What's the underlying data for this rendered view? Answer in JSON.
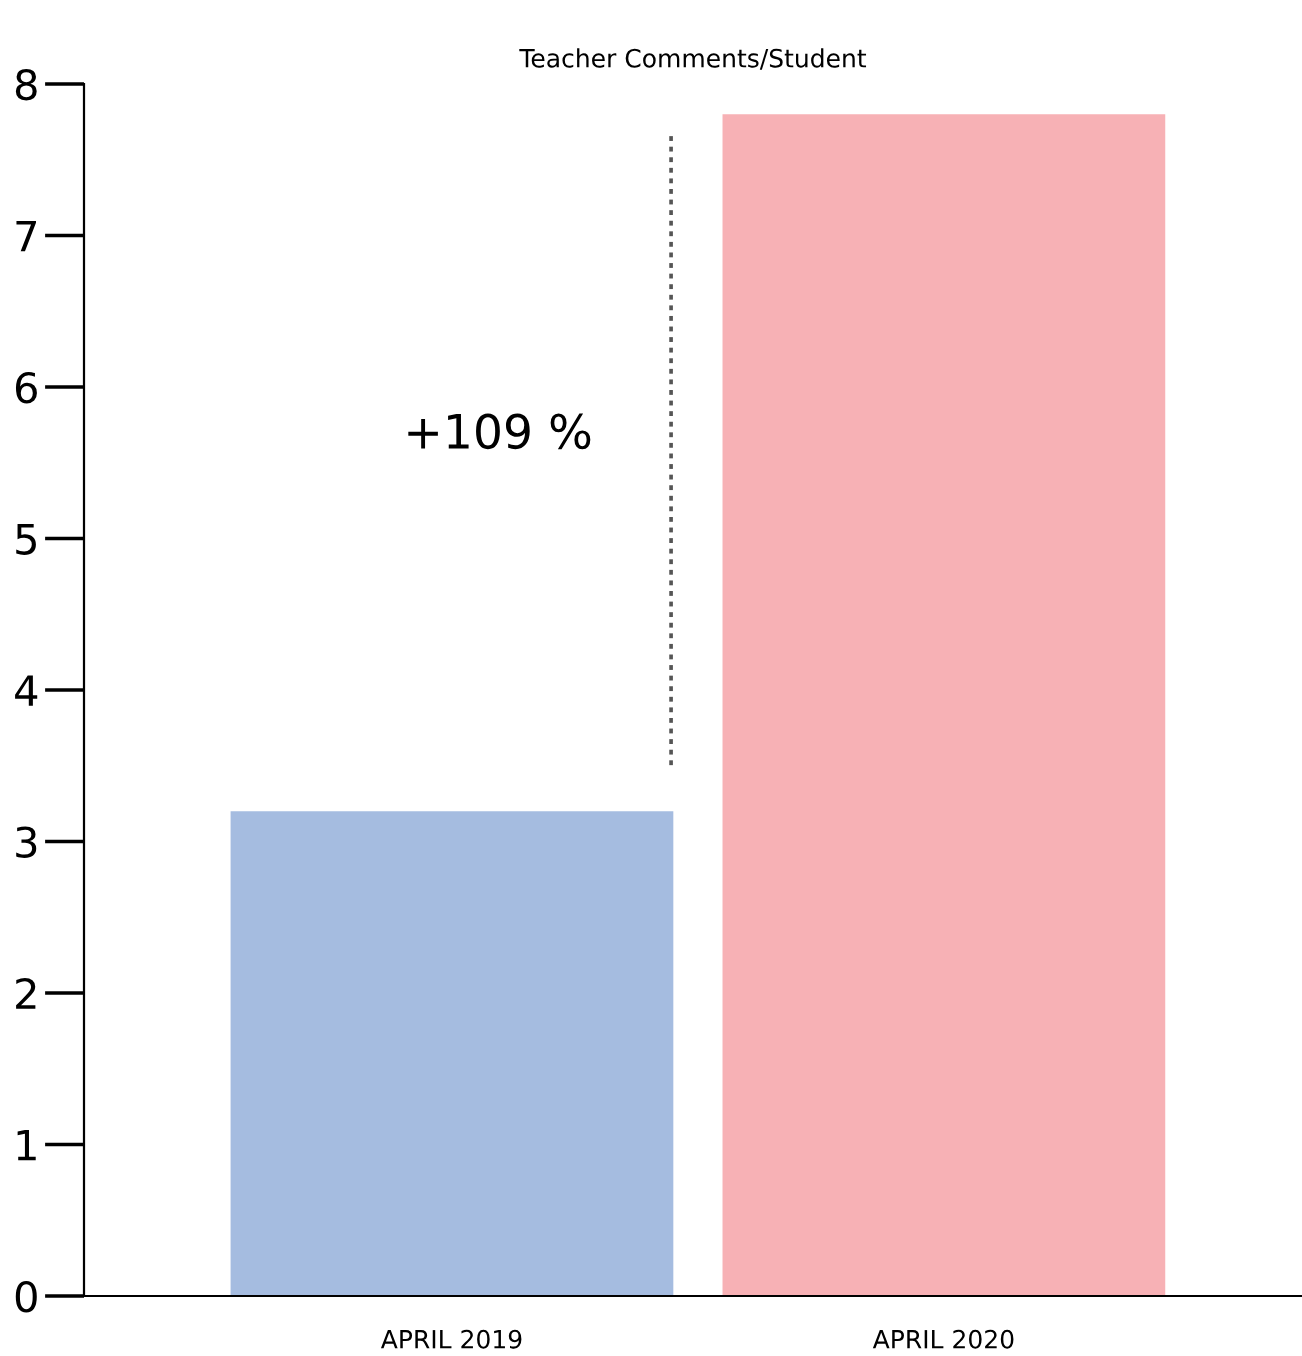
{
  "chart_data": {
    "type": "bar",
    "title": "Teacher Comments/Student",
    "categories": [
      "APRIL 2019",
      "APRIL 2020"
    ],
    "values": [
      3.2,
      7.8
    ],
    "colors": [
      "#a5bce0",
      "#f7b1b5"
    ],
    "ylim": [
      0,
      8
    ],
    "yticks": [
      0,
      1,
      2,
      3,
      4,
      5,
      6,
      7,
      8
    ],
    "annotations": [
      "+109 %"
    ],
    "grid": false,
    "legend": false
  }
}
